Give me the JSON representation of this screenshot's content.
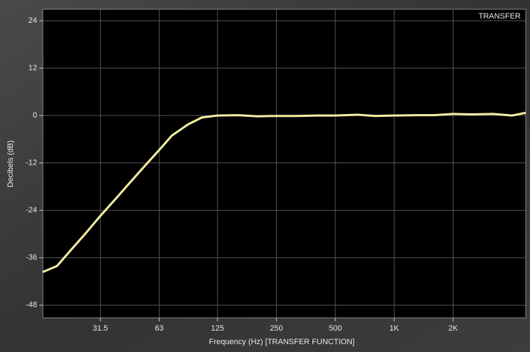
{
  "chart_data": {
    "type": "line",
    "xlabel": "Frequency (Hz) [TRANSFER FUNCTION]",
    "ylabel": "Decibels (dB)",
    "x": [
      16,
      18.9,
      22.4,
      26.5,
      31.5,
      37.5,
      44.4,
      53,
      63,
      73,
      88,
      104,
      125,
      160,
      200,
      250,
      320,
      400,
      500,
      650,
      800,
      1000,
      1300,
      1600,
      2000,
      2500,
      3200,
      4000,
      4700
    ],
    "series": [
      {
        "name": "TRANSFER",
        "color": "#f3efa2",
        "values": [
          -39.6,
          -38.1,
          -33.9,
          -29.8,
          -25.4,
          -21.2,
          -17.1,
          -12.8,
          -8.7,
          -5.1,
          -2.3,
          -0.5,
          0,
          0.1,
          -0.2,
          -0.1,
          -0.1,
          0,
          0,
          0.2,
          -0.1,
          0,
          0.1,
          0.1,
          0.4,
          0.3,
          0.4,
          0,
          0.7
        ]
      }
    ],
    "xlim": [
      16,
      4700
    ],
    "xscale": "log",
    "xticks": [
      31.5,
      63,
      125,
      250,
      500,
      {
        "value": 1000,
        "label": "1K"
      },
      {
        "value": 2000,
        "label": "2K"
      }
    ],
    "ylim": [
      -51.2,
      26.9
    ],
    "yticks": [
      24,
      12,
      0,
      -12,
      -24,
      -36,
      -48
    ],
    "grid": true
  }
}
